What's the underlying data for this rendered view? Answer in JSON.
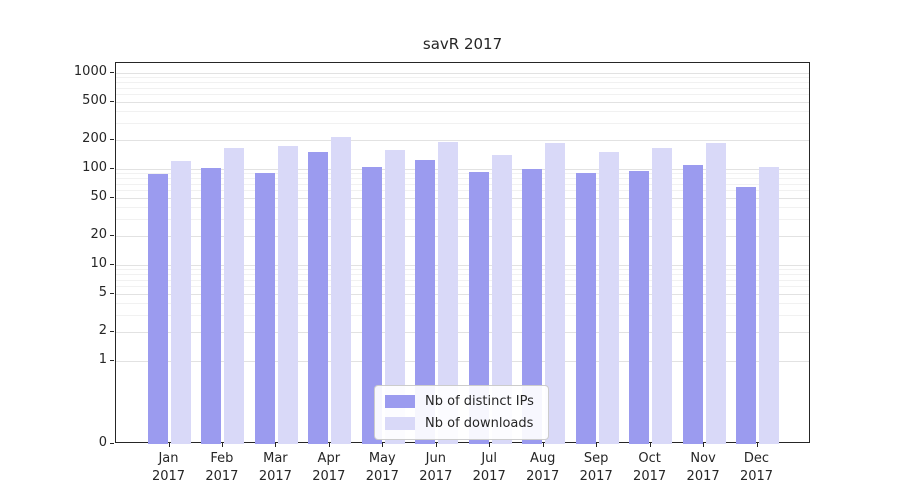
{
  "chart_data": {
    "type": "bar",
    "title": "savR 2017",
    "categories": [
      "Jan",
      "Feb",
      "Mar",
      "Apr",
      "May",
      "Jun",
      "Jul",
      "Aug",
      "Sep",
      "Oct",
      "Nov",
      "Dec"
    ],
    "category_year": "2017",
    "series": [
      {
        "name": "Nb of distinct IPs",
        "color": "#9b9bef",
        "values": [
          88,
          103,
          90,
          150,
          104,
          125,
          94,
          100,
          92,
          95,
          110,
          65
        ]
      },
      {
        "name": "Nb of downloads",
        "color": "#d9d9f8",
        "values": [
          120,
          165,
          172,
          215,
          157,
          192,
          141,
          187,
          152,
          167,
          188,
          106
        ]
      }
    ],
    "y_scale": "symlog",
    "y_ticks": [
      0,
      1,
      2,
      5,
      10,
      20,
      50,
      100,
      200,
      500,
      1000
    ],
    "ylim": [
      0,
      1270
    ],
    "xlabel": "",
    "ylabel": "",
    "grid": true,
    "legend_position": "lower center"
  }
}
